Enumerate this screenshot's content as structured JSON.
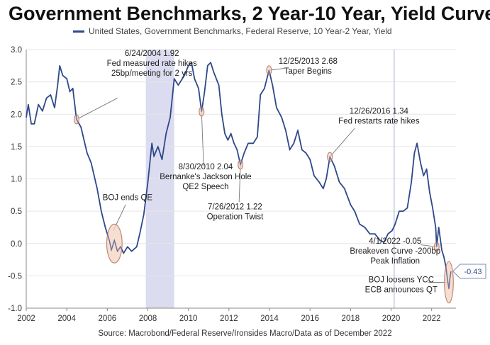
{
  "title": "Government Benchmarks, 2 Year-10 Year, Yield Curve",
  "legend_label": "United States, Government Benchmarks, Federal Reserve, 10 Year-2 Year, Yield",
  "source": "Source: Macrobond/Federal Reserve/Ironsides Macro/Data as of December 2022",
  "colors": {
    "line": "#2f4a8a",
    "recession": "#dcdcf0",
    "marker_fill": "#f3d3c2",
    "marker_stroke": "#c08a78",
    "grid": "#e6e6e6"
  },
  "chart_data": {
    "type": "line",
    "xlim": [
      2002,
      2023.2
    ],
    "ylim": [
      -1.0,
      3.0
    ],
    "x_ticks": [
      2002,
      2004,
      2006,
      2008,
      2010,
      2012,
      2014,
      2016,
      2018,
      2020,
      2022
    ],
    "x_tick_labels": [
      "2002",
      "2004",
      "2006",
      "2008",
      "2010",
      "2012",
      "2014",
      "2016",
      "2018",
      "2020",
      "2022"
    ],
    "y_ticks": [
      3.0,
      2.5,
      2.0,
      1.5,
      1.0,
      0.5,
      0.0,
      -0.5,
      -1.0
    ],
    "y_tick_labels": [
      "3.0",
      "2.5",
      "2.0",
      "1.5",
      "1.0",
      "0.5",
      "0.0",
      "-0.5",
      "-1.0"
    ],
    "shaded_periods": [
      [
        2007.9,
        2009.3
      ]
    ],
    "vertical_lines": [
      2020.15
    ],
    "series": [
      {
        "points": [
          [
            2002.0,
            1.95
          ],
          [
            2002.1,
            2.15
          ],
          [
            2002.25,
            1.85
          ],
          [
            2002.4,
            1.85
          ],
          [
            2002.6,
            2.15
          ],
          [
            2002.8,
            2.05
          ],
          [
            2003.0,
            2.25
          ],
          [
            2003.2,
            2.3
          ],
          [
            2003.4,
            2.1
          ],
          [
            2003.55,
            2.45
          ],
          [
            2003.65,
            2.75
          ],
          [
            2003.8,
            2.6
          ],
          [
            2004.0,
            2.55
          ],
          [
            2004.15,
            2.35
          ],
          [
            2004.3,
            2.4
          ],
          [
            2004.48,
            1.92
          ],
          [
            2004.7,
            1.8
          ],
          [
            2005.0,
            1.4
          ],
          [
            2005.2,
            1.25
          ],
          [
            2005.5,
            0.85
          ],
          [
            2005.7,
            0.5
          ],
          [
            2005.9,
            0.25
          ],
          [
            2006.1,
            0.05
          ],
          [
            2006.2,
            -0.1
          ],
          [
            2006.35,
            0.05
          ],
          [
            2006.5,
            -0.12
          ],
          [
            2006.65,
            -0.05
          ],
          [
            2006.8,
            -0.15
          ],
          [
            2007.0,
            -0.05
          ],
          [
            2007.2,
            -0.12
          ],
          [
            2007.45,
            -0.05
          ],
          [
            2007.6,
            0.15
          ],
          [
            2007.8,
            0.45
          ],
          [
            2008.0,
            0.95
          ],
          [
            2008.2,
            1.55
          ],
          [
            2008.3,
            1.35
          ],
          [
            2008.5,
            1.5
          ],
          [
            2008.7,
            1.3
          ],
          [
            2008.9,
            1.7
          ],
          [
            2009.1,
            1.95
          ],
          [
            2009.3,
            2.55
          ],
          [
            2009.5,
            2.45
          ],
          [
            2009.8,
            2.6
          ],
          [
            2010.0,
            2.75
          ],
          [
            2010.15,
            2.8
          ],
          [
            2010.3,
            2.55
          ],
          [
            2010.5,
            2.4
          ],
          [
            2010.65,
            2.04
          ],
          [
            2010.8,
            2.35
          ],
          [
            2010.95,
            2.75
          ],
          [
            2011.1,
            2.8
          ],
          [
            2011.25,
            2.65
          ],
          [
            2011.5,
            2.45
          ],
          [
            2011.65,
            2.0
          ],
          [
            2011.8,
            1.7
          ],
          [
            2011.95,
            1.6
          ],
          [
            2012.1,
            1.7
          ],
          [
            2012.25,
            1.55
          ],
          [
            2012.4,
            1.45
          ],
          [
            2012.57,
            1.22
          ],
          [
            2012.75,
            1.4
          ],
          [
            2012.95,
            1.55
          ],
          [
            2013.2,
            1.55
          ],
          [
            2013.4,
            1.65
          ],
          [
            2013.55,
            2.3
          ],
          [
            2013.75,
            2.4
          ],
          [
            2013.98,
            2.68
          ],
          [
            2014.15,
            2.45
          ],
          [
            2014.35,
            2.1
          ],
          [
            2014.6,
            1.95
          ],
          [
            2014.8,
            1.75
          ],
          [
            2015.0,
            1.45
          ],
          [
            2015.2,
            1.55
          ],
          [
            2015.4,
            1.75
          ],
          [
            2015.6,
            1.45
          ],
          [
            2015.8,
            1.4
          ],
          [
            2016.0,
            1.3
          ],
          [
            2016.2,
            1.05
          ],
          [
            2016.45,
            0.95
          ],
          [
            2016.65,
            0.85
          ],
          [
            2016.8,
            1.0
          ],
          [
            2016.98,
            1.34
          ],
          [
            2017.2,
            1.2
          ],
          [
            2017.45,
            0.95
          ],
          [
            2017.7,
            0.85
          ],
          [
            2018.0,
            0.6
          ],
          [
            2018.2,
            0.5
          ],
          [
            2018.45,
            0.3
          ],
          [
            2018.7,
            0.25
          ],
          [
            2018.95,
            0.15
          ],
          [
            2019.2,
            0.15
          ],
          [
            2019.45,
            0.05
          ],
          [
            2019.65,
            0.02
          ],
          [
            2019.85,
            0.15
          ],
          [
            2020.05,
            0.2
          ],
          [
            2020.2,
            0.3
          ],
          [
            2020.4,
            0.5
          ],
          [
            2020.6,
            0.5
          ],
          [
            2020.8,
            0.55
          ],
          [
            2021.0,
            0.95
          ],
          [
            2021.15,
            1.4
          ],
          [
            2021.28,
            1.55
          ],
          [
            2021.45,
            1.25
          ],
          [
            2021.6,
            1.05
          ],
          [
            2021.75,
            1.15
          ],
          [
            2021.9,
            0.8
          ],
          [
            2022.05,
            0.55
          ],
          [
            2022.2,
            0.25
          ],
          [
            2022.25,
            -0.05
          ],
          [
            2022.35,
            0.25
          ],
          [
            2022.5,
            -0.1
          ],
          [
            2022.6,
            -0.2
          ],
          [
            2022.7,
            -0.35
          ],
          [
            2022.78,
            -0.55
          ],
          [
            2022.85,
            -0.7
          ],
          [
            2022.9,
            -0.55
          ],
          [
            2022.95,
            -0.43
          ]
        ]
      }
    ],
    "markers": [
      {
        "x": 2004.48,
        "y": 1.92,
        "rx": 0.12,
        "ry": 0.07
      },
      {
        "x": 2010.65,
        "y": 2.04,
        "rx": 0.12,
        "ry": 0.07
      },
      {
        "x": 2012.57,
        "y": 1.22,
        "rx": 0.12,
        "ry": 0.07
      },
      {
        "x": 2013.98,
        "y": 2.68,
        "rx": 0.12,
        "ry": 0.07
      },
      {
        "x": 2016.98,
        "y": 1.34,
        "rx": 0.12,
        "ry": 0.07
      },
      {
        "x": 2022.25,
        "y": -0.05,
        "rx": 0.12,
        "ry": 0.07
      },
      {
        "x": 2006.35,
        "y": 0.0,
        "rx": 0.38,
        "ry": 0.3
      },
      {
        "x": 2022.85,
        "y": -0.6,
        "rx": 0.22,
        "ry": 0.32
      }
    ],
    "annotations": [
      {
        "lines": [
          "6/24/2004 1.92",
          "Fed measured rate hikes",
          "25bp/meeting for 2 yrs"
        ],
        "x": 2008.2,
        "y": 2.9,
        "target": [
          2004.48,
          1.92
        ],
        "anchor_from": [
          2006.5,
          2.25
        ]
      },
      {
        "lines": [
          "12/25/2013 2.68",
          "Taper Begins"
        ],
        "x": 2015.9,
        "y": 2.78,
        "target": [
          2013.98,
          2.68
        ],
        "anchor_from": [
          2014.75,
          2.71
        ]
      },
      {
        "lines": [
          "12/26/2016 1.34",
          "Fed restarts rate hikes"
        ],
        "x": 2019.4,
        "y": 2.01,
        "target": [
          2016.98,
          1.34
        ],
        "anchor_from": [
          2018.2,
          1.78
        ]
      },
      {
        "lines": [
          "8/30/2010 2.04",
          "Bernanke's Jackson Hole",
          "QE2 Speech"
        ],
        "x": 2010.85,
        "y": 1.15,
        "target": [
          2010.65,
          2.04
        ],
        "anchor_from": [
          2010.75,
          1.2
        ]
      },
      {
        "lines": [
          "7/26/2012 1.22",
          "Operation Twist"
        ],
        "x": 2012.3,
        "y": 0.53,
        "target": [
          2012.57,
          1.22
        ],
        "anchor_from": [
          2012.5,
          0.64
        ]
      },
      {
        "lines": [
          "BOJ ends QE"
        ],
        "x": 2007.0,
        "y": 0.67,
        "target": [
          2006.3,
          0.2
        ],
        "anchor_from": [
          2006.9,
          0.6
        ]
      },
      {
        "lines": [
          "4/1/2022 -0.05",
          "Breakeven Curve -200bp",
          "Peak Inflation"
        ],
        "x": 2020.2,
        "y": 0.0,
        "target": [
          2022.25,
          -0.05
        ],
        "anchor_from": [
          2021.45,
          -0.02
        ]
      },
      {
        "lines": [
          "BOJ loosens YCC",
          "ECB announces QT"
        ],
        "x": 2020.5,
        "y": -0.6,
        "target": [
          2022.75,
          -0.6
        ],
        "anchor_from": [
          2021.85,
          -0.6
        ]
      }
    ],
    "last_value_label": "-0.43",
    "last_value": -0.43
  }
}
